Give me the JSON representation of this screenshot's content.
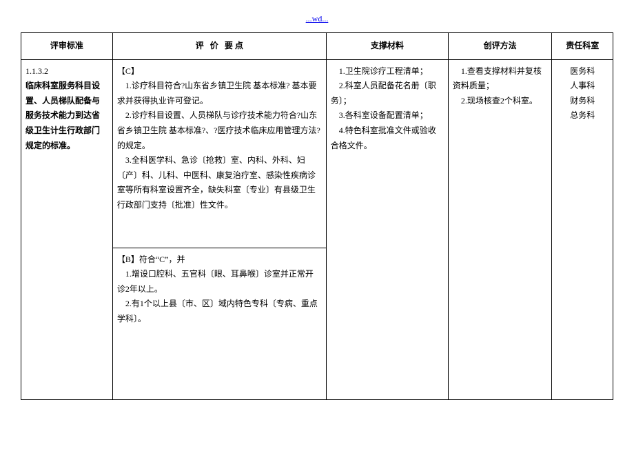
{
  "header_link": "...wd...",
  "columns": {
    "c1": "评审标准",
    "c2_prefix": "评",
    "c2_mid": "价",
    "c2_suffix": "要  点",
    "c3": "支撑材料",
    "c4": "创评方法",
    "c5": "责任科室"
  },
  "row": {
    "standard_code": "1.1.3.2",
    "standard_text": "临床科室服务科目设置、人员梯队配备与服务技术能力到达省级卫生计生行政部门规定的标准。",
    "eval_c_tag": "【C】",
    "eval_c_1": "　1.诊疗科目符合?山东省乡镇卫生院 基本标准? 基本要求并获得执业许可登记。",
    "eval_c_2": "　2.诊疗科目设置、人员梯队与诊疗技术能力符合?山东省乡镇卫生院 基本标准?、?医疗技术临床应用管理方法?的规定。",
    "eval_c_3": "　3.全科医学科、急诊〔抢救〕室、内科、外科、妇〔产〕科、儿科、中医科、康复治疗室、感染性疾病诊室等所有科室设置齐全，缺失科室〔专业〕有县级卫生行政部门支持〔批准〕性文件。",
    "eval_b_tag": "【B】符合“C”，并",
    "eval_b_1": "　1.增设口腔科、五官科〔眼、耳鼻喉〕诊室并正常开诊2年以上。",
    "eval_b_2": "　2.有1个以上县〔市、区〕域内特色专科〔专病、重点学科〕。",
    "mat_1": "　1.卫生院诊疗工程清单；",
    "mat_2": "　2.科室人员配备花名册〔职务〕；",
    "mat_3": "　3.各科室设备配置清单；",
    "mat_4": "　4.特色科室批准文件或验收合格文件。",
    "method_1": "　1.查看支撑材料并复核资料质量；",
    "method_2": "　2.现场核查2个科室。",
    "dept_1": "医务科",
    "dept_2": "人事科",
    "dept_3": "财务科",
    "dept_4": "总务科"
  }
}
